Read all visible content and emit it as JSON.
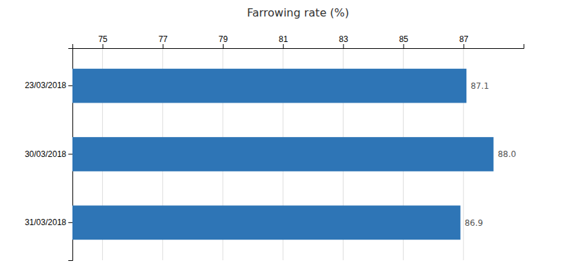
{
  "chart_data": {
    "type": "bar",
    "orientation": "horizontal",
    "title": "Farrowing rate (%)",
    "categories": [
      "23/03/2018",
      "30/03/2018",
      "31/03/2018"
    ],
    "values": [
      87.1,
      88.0,
      86.9
    ],
    "value_labels": [
      "87.1",
      "88.0",
      "86.9"
    ],
    "color": "#2E75B6",
    "xlim": [
      74.0,
      89.0
    ],
    "xticks": [
      75,
      77,
      79,
      81,
      83,
      85,
      87
    ],
    "grid": true,
    "data_labels": true
  }
}
